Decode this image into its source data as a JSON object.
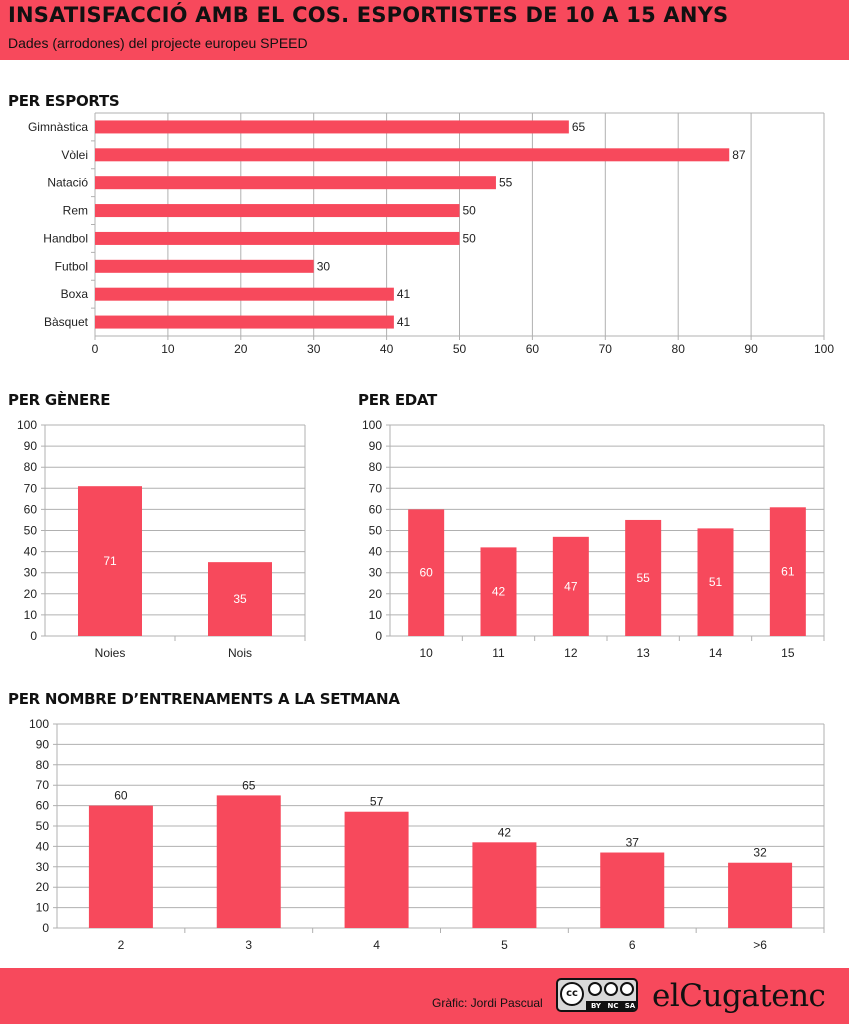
{
  "header": {
    "title": "INSATISFACCIÓ AMB EL COS. ESPORTISTES DE 10 A 15 ANYS",
    "subtitle": "Dades (arrodones) del projecte europeu SPEED"
  },
  "colors": {
    "brand": "#f7495c",
    "bar": "#f7495c",
    "grid": "#b0b0b0"
  },
  "chart_data": [
    {
      "type": "bar",
      "orientation": "horizontal",
      "title": "PER ESPORTS",
      "categories": [
        "Gimnàstica",
        "Vòlei",
        "Natació",
        "Rem",
        "Handbol",
        "Futbol",
        "Boxa",
        "Bàsquet"
      ],
      "values": [
        65,
        87,
        55,
        50,
        50,
        30,
        41,
        41
      ],
      "xlim": [
        0,
        100
      ],
      "ticks": [
        0,
        10,
        20,
        30,
        40,
        50,
        60,
        70,
        80,
        90,
        100
      ],
      "labels": "outside",
      "grid": true
    },
    {
      "type": "bar",
      "orientation": "vertical",
      "title": "PER GÈNERE",
      "categories": [
        "Noies",
        "Nois"
      ],
      "values": [
        71,
        35
      ],
      "ylim": [
        0,
        100
      ],
      "ticks": [
        0,
        10,
        20,
        30,
        40,
        50,
        60,
        70,
        80,
        90,
        100
      ],
      "labels": "inside",
      "grid": true
    },
    {
      "type": "bar",
      "orientation": "vertical",
      "title": "PER EDAT",
      "categories": [
        "10",
        "11",
        "12",
        "13",
        "14",
        "15"
      ],
      "values": [
        60,
        42,
        47,
        55,
        51,
        61
      ],
      "ylim": [
        0,
        100
      ],
      "ticks": [
        0,
        10,
        20,
        30,
        40,
        50,
        60,
        70,
        80,
        90,
        100
      ],
      "labels": "inside",
      "grid": true
    },
    {
      "type": "bar",
      "orientation": "vertical",
      "title": "PER NOMBRE D’ENTRENAMENTS A LA SETMANA",
      "categories": [
        "2",
        "3",
        "4",
        "5",
        "6",
        ">6"
      ],
      "values": [
        60,
        65,
        57,
        42,
        37,
        32
      ],
      "ylim": [
        0,
        100
      ],
      "ticks": [
        0,
        10,
        20,
        30,
        40,
        50,
        60,
        70,
        80,
        90,
        100
      ],
      "labels": "above",
      "grid": true
    }
  ],
  "footer": {
    "credit": "Gràfic: Jordi Pascual",
    "license_icon": "cc-by-nc-sa-icon",
    "license_badges": [
      "BY",
      "NC",
      "SA"
    ],
    "license_mark": "cc",
    "logo": "elCugatenc"
  }
}
